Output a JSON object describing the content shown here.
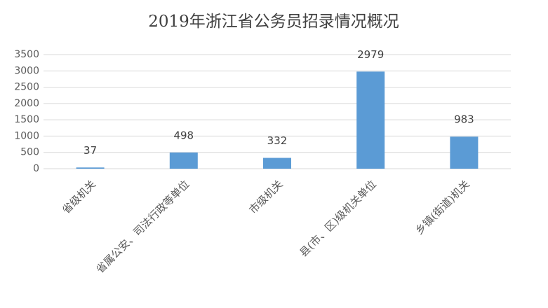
{
  "chart_data": {
    "type": "bar",
    "title": "2019年浙江省公务员招录情况概况",
    "categories": [
      "省级机关",
      "省属公安、司法行政等单位",
      "市级机关",
      "县(市、区)级机关单位",
      "乡镇(街道)机关"
    ],
    "values": [
      37,
      498,
      332,
      2979,
      983
    ],
    "color": "#5b9bd5",
    "ylim": [
      0,
      3500
    ],
    "yticks": [
      0,
      500,
      1000,
      1500,
      2000,
      2500,
      3000,
      3500
    ],
    "grid": true
  }
}
